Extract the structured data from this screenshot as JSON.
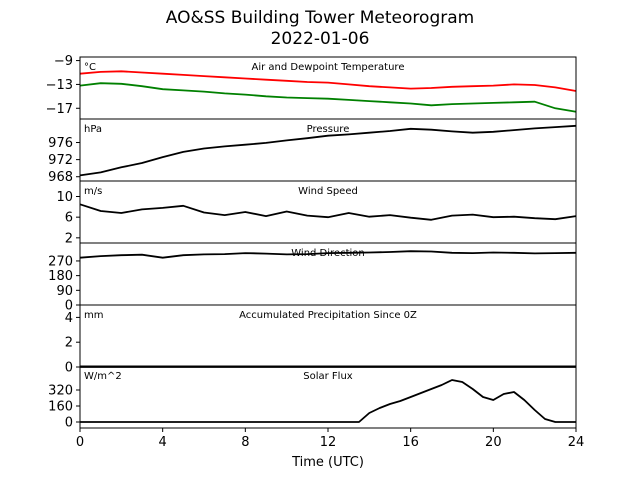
{
  "figure": {
    "title_line1": "AO&SS Building Tower Meteorogram",
    "title_line2": "2022-01-06",
    "xlabel": "Time (UTC)"
  },
  "chart_data": [
    {
      "type": "line",
      "panel": "temperature",
      "label": "Air and Dewpoint Temperature",
      "unit": "°C",
      "yticks": [
        -9,
        -13,
        -17
      ],
      "ylim": [
        -18.8,
        -8.4
      ],
      "series": [
        {
          "color": "#ff0000",
          "x": [
            0,
            1,
            2,
            3,
            4,
            5,
            6,
            7,
            8,
            9,
            10,
            11,
            12,
            13,
            14,
            15,
            16,
            17,
            18,
            19,
            20,
            21,
            22,
            23,
            24
          ],
          "y": [
            -11.2,
            -10.9,
            -10.8,
            -11.0,
            -11.2,
            -11.4,
            -11.6,
            -11.8,
            -12.0,
            -12.2,
            -12.4,
            -12.6,
            -12.7,
            -13.0,
            -13.3,
            -13.5,
            -13.7,
            -13.6,
            -13.4,
            -13.3,
            -13.2,
            -13.0,
            -13.1,
            -13.5,
            -14.1
          ]
        },
        {
          "color": "#008000",
          "x": [
            0,
            1,
            2,
            3,
            4,
            5,
            6,
            7,
            8,
            9,
            10,
            11,
            12,
            13,
            14,
            15,
            16,
            17,
            18,
            19,
            20,
            21,
            22,
            23,
            24
          ],
          "y": [
            -13.2,
            -12.8,
            -12.9,
            -13.3,
            -13.8,
            -14.0,
            -14.2,
            -14.5,
            -14.7,
            -15.0,
            -15.2,
            -15.3,
            -15.4,
            -15.6,
            -15.8,
            -16.0,
            -16.2,
            -16.5,
            -16.3,
            -16.2,
            -16.1,
            -16.0,
            -15.9,
            -17.0,
            -17.6
          ]
        }
      ]
    },
    {
      "type": "line",
      "panel": "pressure",
      "label": "Pressure",
      "unit": "hPa",
      "yticks": [
        976,
        972,
        968
      ],
      "ylim": [
        967,
        981.5
      ],
      "series": [
        {
          "color": "#000000",
          "x": [
            0,
            1,
            2,
            3,
            4,
            5,
            6,
            7,
            8,
            9,
            10,
            11,
            12,
            13,
            14,
            15,
            16,
            17,
            18,
            19,
            20,
            21,
            22,
            23,
            24
          ],
          "y": [
            968.3,
            969.0,
            970.2,
            971.2,
            972.6,
            973.8,
            974.6,
            975.1,
            975.5,
            975.9,
            976.5,
            977.0,
            977.6,
            977.9,
            978.3,
            978.7,
            979.2,
            979.0,
            978.6,
            978.3,
            978.5,
            978.9,
            979.3,
            979.6,
            979.9
          ]
        }
      ]
    },
    {
      "type": "line",
      "panel": "wind_speed",
      "label": "Wind Speed",
      "unit": "m/s",
      "yticks": [
        10,
        6,
        2
      ],
      "ylim": [
        1,
        13
      ],
      "series": [
        {
          "color": "#000000",
          "x": [
            0,
            1,
            2,
            3,
            4,
            5,
            6,
            7,
            8,
            9,
            10,
            11,
            12,
            13,
            14,
            15,
            16,
            17,
            18,
            19,
            20,
            21,
            22,
            23,
            24
          ],
          "y": [
            8.5,
            7.2,
            6.8,
            7.5,
            7.8,
            8.2,
            6.9,
            6.4,
            7.0,
            6.2,
            7.1,
            6.3,
            6.0,
            6.8,
            6.1,
            6.4,
            5.9,
            5.5,
            6.3,
            6.5,
            6.0,
            6.1,
            5.8,
            5.6,
            6.2
          ]
        }
      ]
    },
    {
      "type": "line",
      "panel": "wind_direction",
      "label": "Wind Direction",
      "unit": "",
      "yticks": [
        270,
        180,
        90,
        0
      ],
      "ylim": [
        0,
        380
      ],
      "series": [
        {
          "color": "#000000",
          "x": [
            0,
            1,
            2,
            3,
            4,
            5,
            6,
            7,
            8,
            9,
            10,
            11,
            12,
            13,
            14,
            15,
            16,
            17,
            18,
            19,
            20,
            21,
            22,
            23,
            24
          ],
          "y": [
            290,
            300,
            305,
            308,
            290,
            305,
            310,
            312,
            318,
            315,
            310,
            312,
            318,
            320,
            322,
            325,
            330,
            328,
            320,
            318,
            322,
            320,
            316,
            318,
            320
          ]
        }
      ]
    },
    {
      "type": "line",
      "panel": "precipitation",
      "label": "Accumulated Precipitation Since 0Z",
      "unit": "mm",
      "yticks": [
        4,
        2,
        0
      ],
      "ylim": [
        0,
        5
      ],
      "series": [
        {
          "color": "#000000",
          "x": [
            0,
            24
          ],
          "y": [
            0,
            0
          ]
        }
      ]
    },
    {
      "type": "line",
      "panel": "solar_flux",
      "label": "Solar Flux",
      "unit": "W/m^2",
      "yticks": [
        320,
        160,
        0
      ],
      "ylim": [
        -60,
        560
      ],
      "series": [
        {
          "color": "#000000",
          "x": [
            0,
            13.5,
            14,
            14.5,
            15,
            15.5,
            16,
            16.5,
            17,
            17.5,
            18,
            18.5,
            19,
            19.5,
            20,
            20.5,
            21,
            21.5,
            22,
            22.5,
            23,
            24
          ],
          "y": [
            0,
            0,
            90,
            140,
            180,
            210,
            250,
            290,
            330,
            370,
            420,
            400,
            330,
            250,
            220,
            280,
            300,
            220,
            120,
            30,
            0,
            0
          ]
        }
      ]
    }
  ],
  "xaxis": {
    "ticks": [
      0,
      4,
      8,
      12,
      16,
      20,
      24
    ],
    "xlim": [
      0,
      24
    ]
  }
}
